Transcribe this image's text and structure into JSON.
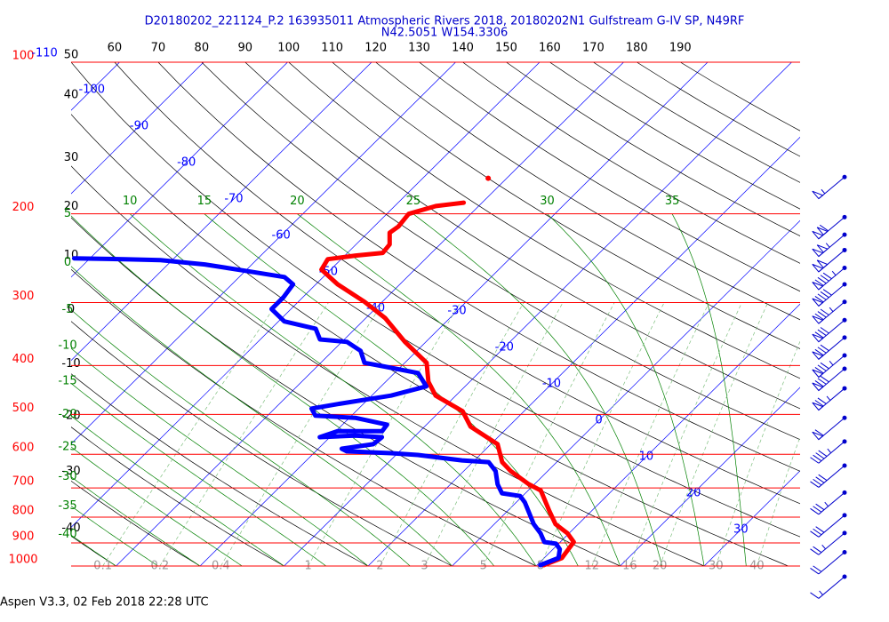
{
  "chart_data": {
    "type": "skew-t",
    "title": "D20180202_221124_P.2 163935011 Atmospheric Rivers 2018, 20180202N1 Gulfstream G-IV SP, N49RF",
    "subtitle": "N42.5051 W154.3306",
    "footer": "Aspen V3.3, 02 Feb 2018  22:28 UTC",
    "log_y": true,
    "ylim": [
      1000,
      100
    ],
    "yticks": [
      100,
      200,
      300,
      400,
      500,
      600,
      700,
      800,
      900,
      1000
    ],
    "ytick_color": "#ff0000",
    "isotherms": {
      "color": "#0000ff",
      "values": [
        -110,
        -100,
        -90,
        -80,
        -70,
        -60,
        -50,
        -40,
        -30,
        -20,
        -10,
        0,
        10,
        20,
        30
      ]
    },
    "dry_adiabats": {
      "color": "#000000",
      "values": [
        -40,
        -30,
        -20,
        -10,
        0,
        10,
        20,
        30,
        40,
        50,
        60,
        70,
        80,
        90,
        100,
        110,
        120,
        130,
        140,
        150,
        160,
        170,
        180,
        190
      ]
    },
    "moist_adiabats": {
      "color": "#008000",
      "values": [
        -40,
        -35,
        -30,
        -25,
        -20,
        -15,
        -10,
        -5,
        0,
        5,
        10,
        15,
        20,
        25,
        30,
        35
      ]
    },
    "mixing_ratio": {
      "color": "#7fbf7f",
      "values": [
        0.1,
        0.2,
        0.4,
        1,
        2,
        3,
        5,
        8,
        12,
        16,
        20,
        30,
        40
      ]
    },
    "series": [
      {
        "color": "#ff0000",
        "x": [
          10.8,
          12.1,
          11.6,
          9.8,
          7.3,
          5.0,
          1.5,
          -0.7,
          -4.4,
          -6.5,
          -9.2,
          -14.5,
          -17.3,
          -22.4,
          -24.9,
          -27.4,
          -32.5,
          -37.7,
          -42.1,
          -47.4,
          -51.1,
          -51.6,
          -48.7,
          -45.8,
          -46.0,
          -47.4,
          -47.1,
          -47.4,
          -45.1,
          -42.2
        ],
        "values": [
          996,
          964,
          896,
          861,
          826,
          778,
          708,
          688,
          648,
          622,
          573,
          529,
          493,
          459,
          431,
          395,
          359,
          322,
          299,
          276,
          258,
          246,
          242,
          239,
          230,
          218,
          212,
          200,
          193,
          190
        ]
      },
      {
        "color": "#0000ff",
        "x": [
          10.4,
          11.7,
          10.8,
          9.7,
          8.1,
          6.6,
          4.7,
          2.5,
          1.0,
          -0.3,
          -2.8,
          -4.4,
          -6.2,
          -8.1,
          -11.5,
          -17.4,
          -20.8,
          -26.3,
          -27.2,
          -24.0,
          -23.8,
          -27.2,
          -31.2,
          -29.8,
          -24.5,
          -24.7,
          -29.3,
          -34.3,
          -35.6,
          -33.0,
          -27.7,
          -24.6,
          -27.2,
          -32.3,
          -34.8,
          -36.7,
          -39.4,
          -42.9,
          -44.7,
          -49.3,
          -52.3,
          -52.3,
          -52.7,
          -54.6,
          -59.6,
          -65.6,
          -71.4,
          -75.8,
          -81.9
        ],
        "values": [
          996,
          964,
          926,
          903,
          896,
          861,
          826,
          778,
          747,
          726,
          717,
          688,
          648,
          622,
          617,
          602,
          597,
          592,
          585,
          573,
          555,
          551,
          555,
          540,
          540,
          524,
          508,
          503,
          487,
          477,
          459,
          440,
          414,
          401,
          395,
          374,
          359,
          355,
          338,
          327,
          309,
          293,
          276,
          267,
          260,
          252,
          247,
          246,
          245
        ]
      },
      {
        "color": "#ff0000",
        "x": [
          -42.2
        ],
        "values": [
          170
        ]
      }
    ],
    "wind": {
      "color": "#0000cc",
      "values": [
        169,
        203,
        220,
        236,
        256,
        276,
        299,
        325,
        352,
        382,
        406,
        444,
        508,
        566,
        632,
        715,
        793,
        860,
        939,
        1050
      ],
      "speed": [
        55,
        110,
        105,
        100,
        95,
        90,
        85,
        80,
        80,
        85,
        80,
        75,
        60,
        45,
        40,
        35,
        30,
        25,
        20,
        15
      ],
      "direction": [
        230,
        230,
        230,
        230,
        230,
        230,
        230,
        230,
        230,
        230,
        230,
        230,
        230,
        230,
        230,
        230,
        230,
        230,
        230,
        230
      ]
    }
  }
}
